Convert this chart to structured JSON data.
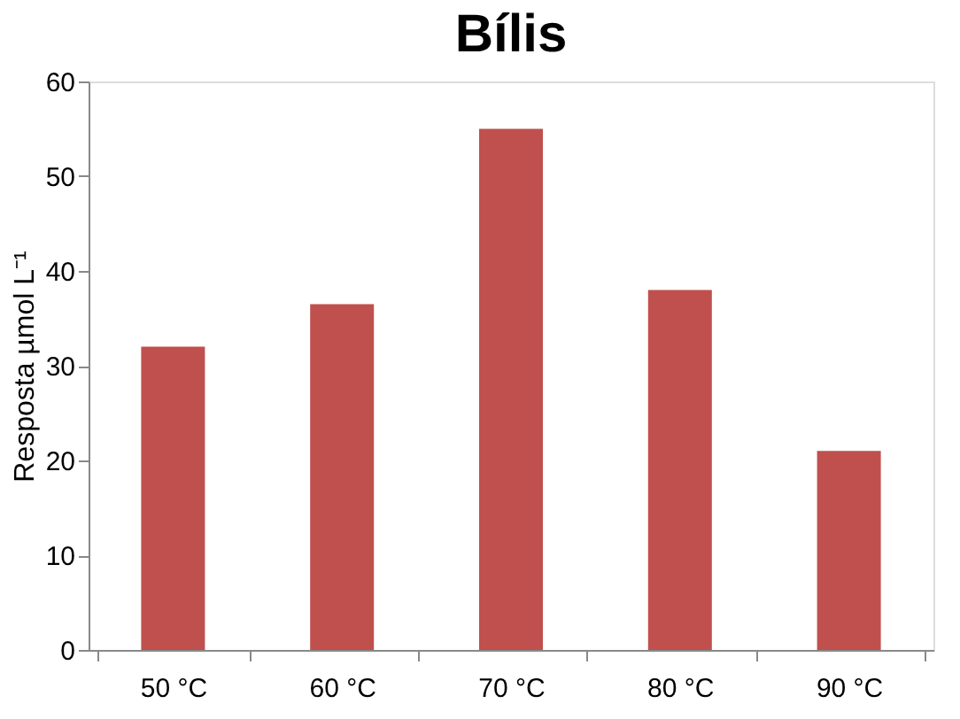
{
  "chart_data": {
    "type": "bar",
    "title": "Bílis",
    "ylabel": "Resposta µmol L⁻¹",
    "categories": [
      "50 °C",
      "60 °C",
      "70 °C",
      "80 °C",
      "90 °C"
    ],
    "values": [
      32,
      36.5,
      55,
      38,
      21
    ],
    "color": "#c0504d",
    "ylim": [
      0,
      60
    ],
    "yticks": [
      0,
      10,
      20,
      30,
      40,
      50,
      60
    ],
    "grid": false
  }
}
